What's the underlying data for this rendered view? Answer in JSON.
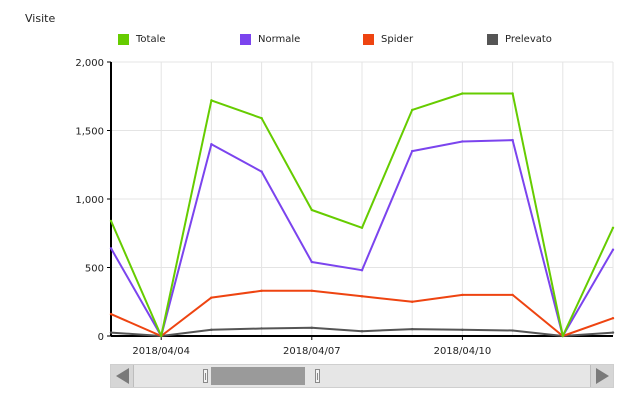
{
  "chart_data": {
    "type": "line",
    "title": "Visite",
    "x": [
      "2018/04/03",
      "2018/04/04",
      "2018/04/05",
      "2018/04/06",
      "2018/04/07",
      "2018/04/08",
      "2018/04/09",
      "2018/04/10",
      "2018/04/11",
      "2018/04/12",
      "2018/04/13"
    ],
    "xlim": [
      "2018/04/03",
      "2018/04/13"
    ],
    "x_tick_labels": [
      "2018/04/04",
      "2018/04/07",
      "2018/04/10"
    ],
    "ylim": [
      0,
      2000
    ],
    "y_tick_labels": [
      "0",
      "500",
      "1,000",
      "1,500",
      "2,000"
    ],
    "grid": true,
    "legend_position": "top",
    "series": [
      {
        "name": "Totale",
        "color": "#66cc00",
        "values": [
          840,
          0,
          1720,
          1590,
          920,
          790,
          1650,
          1770,
          1770,
          0,
          790
        ]
      },
      {
        "name": "Normale",
        "color": "#7b44ee",
        "values": [
          640,
          0,
          1400,
          1200,
          540,
          480,
          1350,
          1420,
          1430,
          0,
          630
        ]
      },
      {
        "name": "Spider",
        "color": "#ee4411",
        "values": [
          160,
          0,
          280,
          330,
          330,
          290,
          250,
          300,
          300,
          0,
          130
        ]
      },
      {
        "name": "Prelevato",
        "color": "#555555",
        "values": [
          25,
          0,
          45,
          55,
          60,
          35,
          50,
          45,
          40,
          0,
          25
        ]
      }
    ]
  },
  "scrollbar": {
    "left_arrow_icon": "arrow-left-icon",
    "right_arrow_icon": "arrow-right-icon",
    "window_start_fraction": 0.12,
    "window_end_fraction": 0.44
  }
}
